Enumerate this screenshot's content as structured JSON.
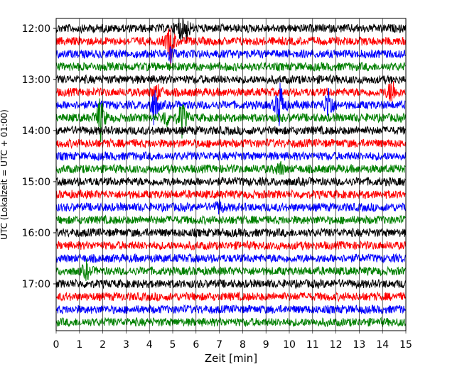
{
  "chart_data": {
    "type": "line",
    "title": "",
    "xlabel": "Zeit  [min]",
    "ylabel": "UTC (Lokalzeit = UTC + 01:00)",
    "xlim": [
      0,
      15
    ],
    "x_ticks": [
      "0",
      "1",
      "2",
      "3",
      "4",
      "5",
      "6",
      "7",
      "8",
      "9",
      "10",
      "11",
      "12",
      "13",
      "14",
      "15"
    ],
    "y_tick_labels": [
      "12:00",
      "13:00",
      "14:00",
      "15:00",
      "16:00",
      "17:00"
    ],
    "trace_start": "12:00",
    "trace_interval_minutes": 15,
    "trace_count": 24,
    "trace_colors": [
      "#000000",
      "#ff0000",
      "#0000ff",
      "#008000"
    ],
    "events": [
      {
        "trace": "12:00",
        "x": 5.3,
        "amplitude": 1.2
      },
      {
        "trace": "12:00",
        "x": 5.6,
        "amplitude": 1.1
      },
      {
        "trace": "12:15",
        "x": 4.9,
        "amplitude": 2.2
      },
      {
        "trace": "12:30",
        "x": 4.9,
        "amplitude": 0.8
      },
      {
        "trace": "13:15",
        "x": 4.3,
        "amplitude": 1.0
      },
      {
        "trace": "13:15",
        "x": 14.4,
        "amplitude": 1.6
      },
      {
        "trace": "13:30",
        "x": 4.2,
        "amplitude": 2.0
      },
      {
        "trace": "13:30",
        "x": 9.6,
        "amplitude": 2.8
      },
      {
        "trace": "13:30",
        "x": 11.7,
        "amplitude": 2.2
      },
      {
        "trace": "13:45",
        "x": 1.9,
        "amplitude": 2.4
      },
      {
        "trace": "13:45",
        "x": 5.4,
        "amplitude": 2.0
      },
      {
        "trace": "13:45",
        "x": 4.7,
        "amplitude": 1.0
      },
      {
        "trace": "14:45",
        "x": 9.6,
        "amplitude": 0.7
      },
      {
        "trace": "15:30",
        "x": 7.0,
        "amplitude": 0.6
      },
      {
        "trace": "16:45",
        "x": 1.3,
        "amplitude": 0.8
      }
    ]
  }
}
